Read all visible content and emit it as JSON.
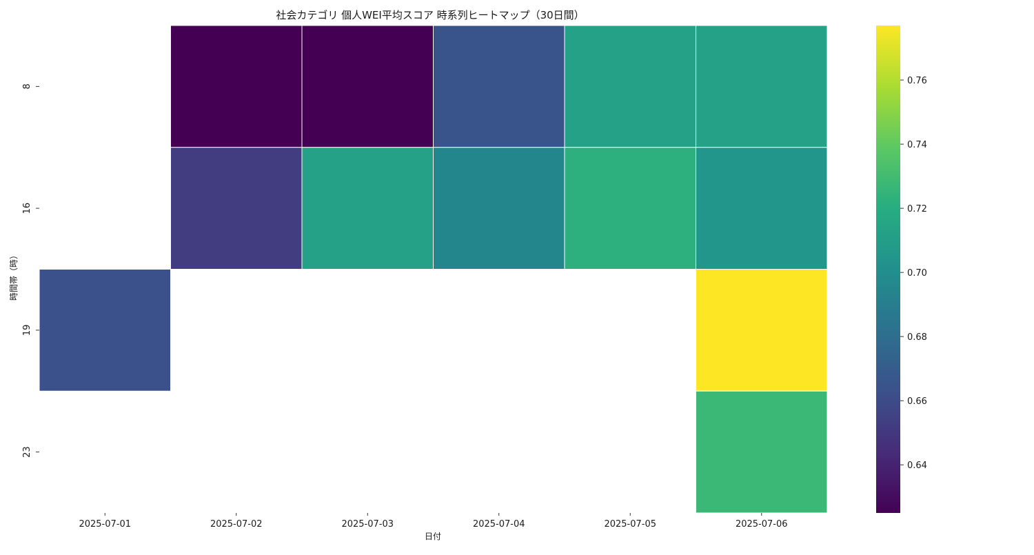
{
  "chart_data": {
    "type": "heatmap",
    "title": "社会カテゴリ 個人WEI平均スコア 時系列ヒートマップ（30日間）",
    "xlabel": "日付",
    "ylabel": "時間帯（時）",
    "x": [
      "2025-07-01",
      "2025-07-02",
      "2025-07-03",
      "2025-07-04",
      "2025-07-05",
      "2025-07-06"
    ],
    "y": [
      "8",
      "16",
      "19",
      "23"
    ],
    "values": [
      [
        null,
        0.625,
        0.625,
        0.665,
        0.712,
        0.712
      ],
      [
        null,
        0.652,
        0.712,
        0.695,
        0.722,
        0.705
      ],
      [
        0.663,
        null,
        null,
        null,
        null,
        0.777
      ],
      [
        null,
        null,
        null,
        null,
        null,
        0.727
      ]
    ],
    "colorscale": "viridis",
    "cbar_range": [
      0.625,
      0.777
    ],
    "cbar_ticks": [
      "0.64",
      "0.66",
      "0.68",
      "0.70",
      "0.72",
      "0.74",
      "0.76"
    ],
    "grid": false
  }
}
